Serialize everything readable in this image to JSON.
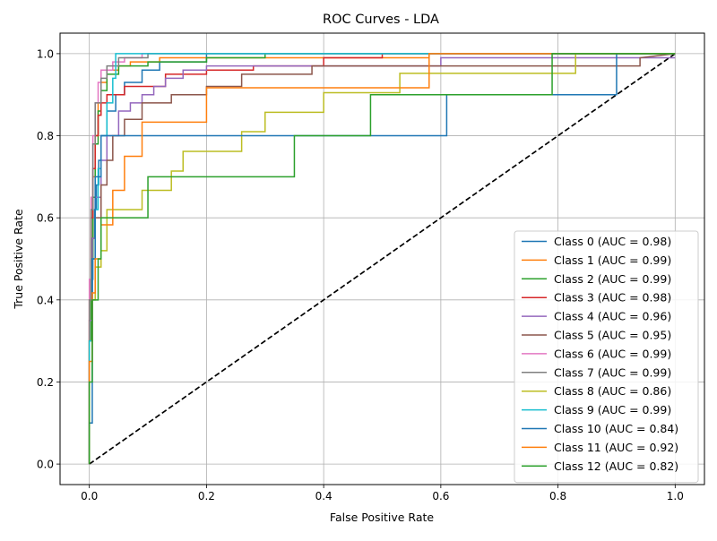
{
  "chart_data": {
    "type": "line",
    "title": "ROC Curves - LDA",
    "xlabel": "False Positive Rate",
    "ylabel": "True Positive Rate",
    "xlim": [
      -0.05,
      1.05
    ],
    "ylim": [
      -0.05,
      1.05
    ],
    "grid": true,
    "legend_position": "lower-right",
    "xticks": [
      "0.0",
      "0.2",
      "0.4",
      "0.6",
      "0.8",
      "1.0"
    ],
    "yticks": [
      "0.0",
      "0.2",
      "0.4",
      "0.6",
      "0.8",
      "1.0"
    ],
    "reference_line": {
      "x": [
        0,
        1
      ],
      "y": [
        0,
        1
      ],
      "color": "#000000",
      "style": "dashed"
    },
    "series": [
      {
        "name": "Class 0 (AUC = 0.98)",
        "color": "#1f77b4",
        "x": [
          0,
          0,
          0.003,
          0.003,
          0.006,
          0.006,
          0.009,
          0.009,
          0.012,
          0.012,
          0.016,
          0.016,
          0.02,
          0.02,
          0.03,
          0.03,
          0.045,
          0.045,
          0.06,
          0.06,
          0.09,
          0.09,
          0.12,
          0.12,
          0.2,
          0.2,
          1
        ],
        "y": [
          0,
          0.3,
          0.3,
          0.45,
          0.45,
          0.55,
          0.55,
          0.62,
          0.62,
          0.68,
          0.68,
          0.74,
          0.74,
          0.8,
          0.8,
          0.86,
          0.86,
          0.9,
          0.9,
          0.93,
          0.93,
          0.96,
          0.96,
          0.98,
          0.98,
          1.0,
          1.0
        ]
      },
      {
        "name": "Class 1 (AUC = 0.99)",
        "color": "#ff7f0e",
        "x": [
          0,
          0,
          0.003,
          0.003,
          0.006,
          0.006,
          0.01,
          0.01,
          0.015,
          0.015,
          0.02,
          0.02,
          0.03,
          0.03,
          0.05,
          0.05,
          0.07,
          0.07,
          0.12,
          0.12,
          0.58,
          0.58,
          1
        ],
        "y": [
          0,
          0.35,
          0.35,
          0.55,
          0.55,
          0.7,
          0.7,
          0.8,
          0.8,
          0.88,
          0.88,
          0.93,
          0.93,
          0.96,
          0.96,
          0.97,
          0.97,
          0.98,
          0.98,
          0.99,
          0.99,
          1.0,
          1.0
        ]
      },
      {
        "name": "Class 2 (AUC = 0.99)",
        "color": "#2ca02c",
        "x": [
          0,
          0,
          0.003,
          0.003,
          0.006,
          0.006,
          0.01,
          0.01,
          0.015,
          0.015,
          0.02,
          0.02,
          0.03,
          0.03,
          0.05,
          0.05,
          0.1,
          0.1,
          0.2,
          0.2,
          0.3,
          0.3,
          1
        ],
        "y": [
          0,
          0.3,
          0.3,
          0.5,
          0.5,
          0.65,
          0.65,
          0.78,
          0.78,
          0.86,
          0.86,
          0.91,
          0.91,
          0.95,
          0.95,
          0.97,
          0.97,
          0.98,
          0.98,
          0.99,
          0.99,
          1.0,
          1.0
        ]
      },
      {
        "name": "Class 3 (AUC = 0.98)",
        "color": "#d62728",
        "x": [
          0,
          0,
          0.003,
          0.003,
          0.006,
          0.006,
          0.01,
          0.01,
          0.015,
          0.015,
          0.02,
          0.02,
          0.03,
          0.03,
          0.06,
          0.06,
          0.13,
          0.13,
          0.2,
          0.2,
          0.28,
          0.28,
          0.4,
          0.4,
          0.5,
          0.5,
          1
        ],
        "y": [
          0,
          0.4,
          0.4,
          0.6,
          0.6,
          0.72,
          0.72,
          0.8,
          0.8,
          0.85,
          0.85,
          0.88,
          0.88,
          0.9,
          0.9,
          0.92,
          0.92,
          0.95,
          0.95,
          0.96,
          0.96,
          0.97,
          0.97,
          0.99,
          0.99,
          1.0,
          1.0
        ]
      },
      {
        "name": "Class 4 (AUC = 0.96)",
        "color": "#9467bd",
        "x": [
          0,
          0,
          0.005,
          0.005,
          0.01,
          0.01,
          0.02,
          0.02,
          0.03,
          0.03,
          0.05,
          0.05,
          0.07,
          0.07,
          0.09,
          0.09,
          0.11,
          0.11,
          0.13,
          0.13,
          0.16,
          0.16,
          0.2,
          0.2,
          0.6,
          0.6,
          1
        ],
        "y": [
          0,
          0.35,
          0.35,
          0.55,
          0.55,
          0.65,
          0.65,
          0.74,
          0.74,
          0.8,
          0.8,
          0.86,
          0.86,
          0.88,
          0.88,
          0.9,
          0.9,
          0.92,
          0.92,
          0.94,
          0.94,
          0.96,
          0.96,
          0.97,
          0.97,
          0.99,
          0.99
        ]
      },
      {
        "name": "Class 5 (AUC = 0.95)",
        "color": "#8c564b",
        "x": [
          0,
          0,
          0.005,
          0.005,
          0.01,
          0.01,
          0.02,
          0.02,
          0.03,
          0.03,
          0.04,
          0.04,
          0.06,
          0.06,
          0.09,
          0.09,
          0.14,
          0.14,
          0.2,
          0.2,
          0.26,
          0.26,
          0.38,
          0.38,
          0.94,
          0.94,
          1
        ],
        "y": [
          0,
          0.3,
          0.3,
          0.5,
          0.5,
          0.6,
          0.6,
          0.68,
          0.68,
          0.74,
          0.74,
          0.8,
          0.8,
          0.84,
          0.84,
          0.88,
          0.88,
          0.9,
          0.9,
          0.92,
          0.92,
          0.95,
          0.95,
          0.97,
          0.97,
          0.99,
          1.0
        ]
      },
      {
        "name": "Class 6 (AUC = 0.99)",
        "color": "#e377c2",
        "x": [
          0,
          0,
          0.003,
          0.003,
          0.006,
          0.006,
          0.01,
          0.01,
          0.015,
          0.015,
          0.02,
          0.02,
          0.04,
          0.04,
          0.06,
          0.06,
          0.09,
          0.09,
          1
        ],
        "y": [
          0,
          0.45,
          0.45,
          0.65,
          0.65,
          0.8,
          0.8,
          0.88,
          0.88,
          0.93,
          0.93,
          0.96,
          0.96,
          0.98,
          0.98,
          0.99,
          0.99,
          1.0,
          1.0
        ]
      },
      {
        "name": "Class 7 (AUC = 0.99)",
        "color": "#7f7f7f",
        "x": [
          0,
          0,
          0.003,
          0.003,
          0.006,
          0.006,
          0.01,
          0.01,
          0.02,
          0.02,
          0.03,
          0.03,
          0.05,
          0.05,
          0.1,
          0.1,
          1
        ],
        "y": [
          0,
          0.4,
          0.4,
          0.62,
          0.62,
          0.78,
          0.78,
          0.88,
          0.88,
          0.94,
          0.94,
          0.97,
          0.97,
          0.99,
          0.99,
          1.0,
          1.0
        ]
      },
      {
        "name": "Class 8 (AUC = 0.86)",
        "color": "#bcbd22",
        "x": [
          0,
          0,
          0.005,
          0.005,
          0.01,
          0.01,
          0.02,
          0.02,
          0.03,
          0.03,
          0.09,
          0.09,
          0.14,
          0.14,
          0.16,
          0.16,
          0.26,
          0.26,
          0.3,
          0.3,
          0.4,
          0.4,
          0.53,
          0.53,
          0.83,
          0.83,
          1
        ],
        "y": [
          0,
          0.3,
          0.3,
          0.4,
          0.4,
          0.48,
          0.48,
          0.52,
          0.52,
          0.62,
          0.62,
          0.667,
          0.667,
          0.714,
          0.714,
          0.762,
          0.762,
          0.81,
          0.81,
          0.857,
          0.857,
          0.905,
          0.905,
          0.952,
          0.952,
          1.0,
          1.0
        ]
      },
      {
        "name": "Class 9 (AUC = 0.99)",
        "color": "#17becf",
        "x": [
          0,
          0,
          0.005,
          0.005,
          0.01,
          0.01,
          0.015,
          0.015,
          0.02,
          0.02,
          0.03,
          0.03,
          0.04,
          0.04,
          0.045,
          0.045,
          1
        ],
        "y": [
          0,
          0.3,
          0.3,
          0.5,
          0.5,
          0.62,
          0.62,
          0.72,
          0.72,
          0.8,
          0.8,
          0.88,
          0.88,
          0.94,
          0.94,
          1.0,
          1.0
        ]
      },
      {
        "name": "Class 10 (AUC = 0.84)",
        "color": "#1f77b4",
        "x": [
          0,
          0,
          0.005,
          0.005,
          0.01,
          0.01,
          0.02,
          0.02,
          0.61,
          0.61,
          0.9,
          0.9,
          1
        ],
        "y": [
          0,
          0.1,
          0.1,
          0.5,
          0.5,
          0.7,
          0.7,
          0.8,
          0.8,
          0.9,
          0.9,
          1.0,
          1.0
        ]
      },
      {
        "name": "Class 11 (AUC = 0.92)",
        "color": "#ff7f0e",
        "x": [
          0,
          0,
          0.005,
          0.005,
          0.01,
          0.01,
          0.02,
          0.02,
          0.04,
          0.04,
          0.06,
          0.06,
          0.09,
          0.09,
          0.2,
          0.2,
          0.58,
          0.58,
          1
        ],
        "y": [
          0,
          0.25,
          0.25,
          0.417,
          0.417,
          0.5,
          0.5,
          0.583,
          0.583,
          0.667,
          0.667,
          0.75,
          0.75,
          0.833,
          0.833,
          0.917,
          0.917,
          1.0,
          1.0
        ]
      },
      {
        "name": "Class 12 (AUC = 0.82)",
        "color": "#2ca02c",
        "x": [
          0,
          0,
          0.005,
          0.005,
          0.015,
          0.015,
          0.02,
          0.02,
          0.1,
          0.1,
          0.35,
          0.35,
          0.48,
          0.48,
          0.79,
          0.79,
          1
        ],
        "y": [
          0,
          0.2,
          0.2,
          0.4,
          0.4,
          0.5,
          0.5,
          0.6,
          0.6,
          0.7,
          0.7,
          0.8,
          0.8,
          0.9,
          0.9,
          1.0,
          1.0
        ]
      }
    ]
  }
}
